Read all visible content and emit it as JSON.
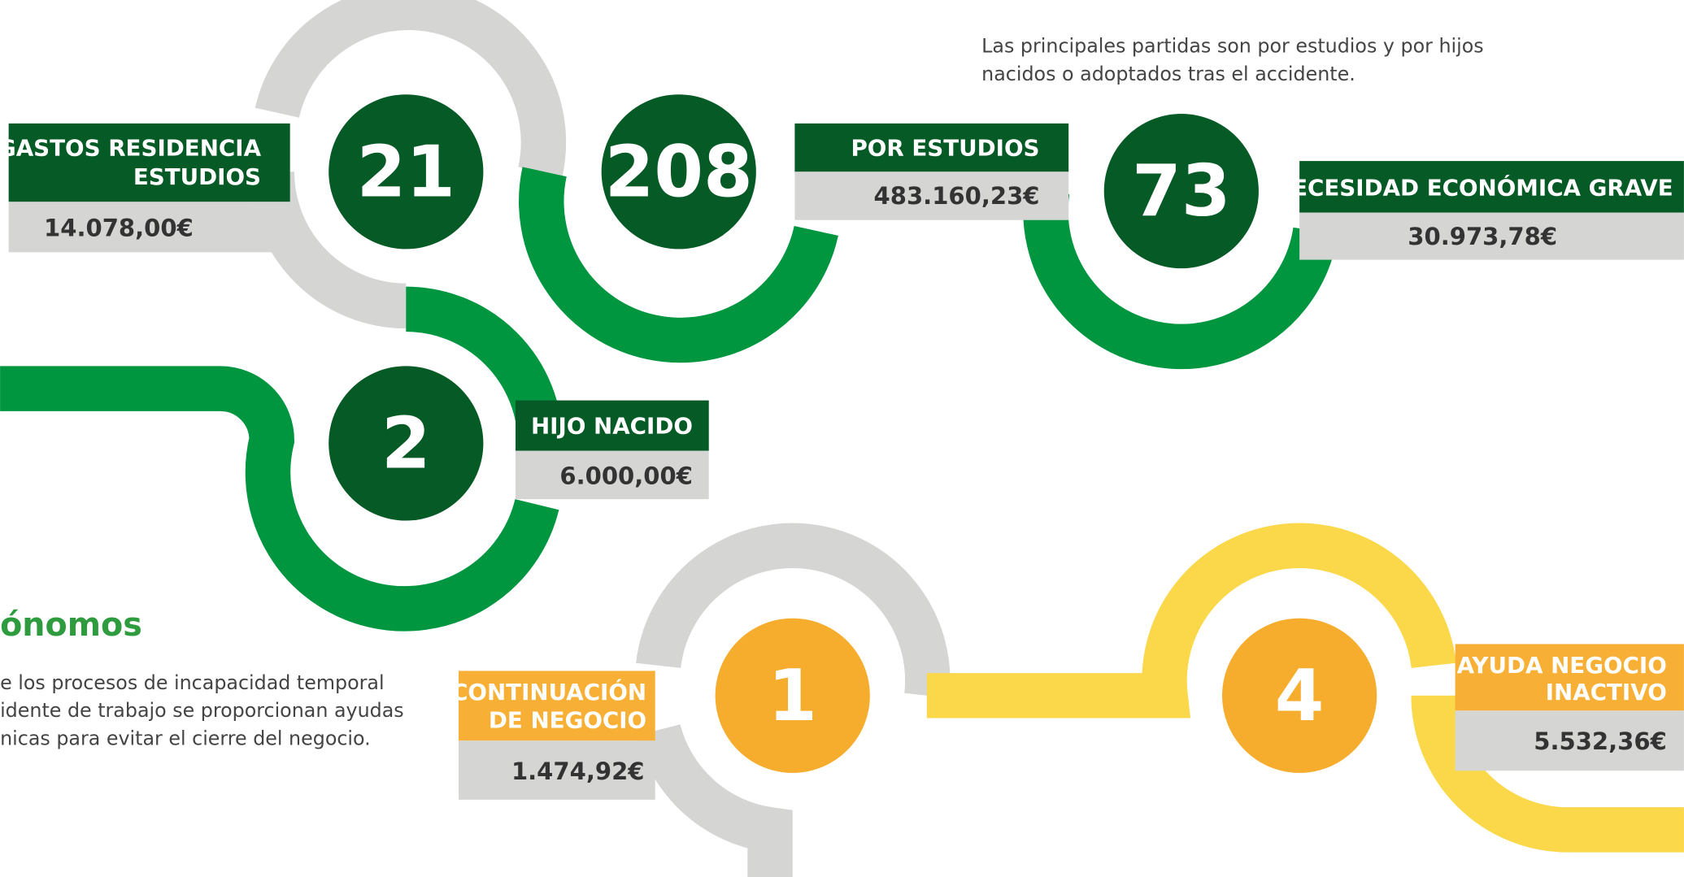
{
  "intro": {
    "lines": [
      "Las principales partidas son por estudios y por hijos",
      "nacidos o adoptados tras el accidente."
    ]
  },
  "section": {
    "title": "ónomos",
    "lines": [
      "e los procesos de incapacidad temporal",
      "idente de trabajo se proporcionan ayudas",
      "nicas para evitar el cierre del negocio."
    ]
  },
  "items": [
    {
      "number": "21",
      "label": [
        "GASTOS RESIDENCIA",
        "ESTUDIOS"
      ],
      "amount": "14.078,00€"
    },
    {
      "number": "208",
      "label": [
        "POR ESTUDIOS"
      ],
      "amount": "483.160,23€"
    },
    {
      "number": "73",
      "label": [
        "NECESIDAD ECONÓMICA GRAVE"
      ],
      "amount": "30.973,78€"
    },
    {
      "number": "2",
      "label": [
        "HIJO NACIDO"
      ],
      "amount": "6.000,00€"
    },
    {
      "number": "1",
      "label": [
        "CONTINUACIÓN",
        "DE NEGOCIO"
      ],
      "amount": "1.474,92€"
    },
    {
      "number": "4",
      "label": [
        "AYUDA NEGOCIO",
        "INACTIVO"
      ],
      "amount": "5.532,36€"
    }
  ]
}
